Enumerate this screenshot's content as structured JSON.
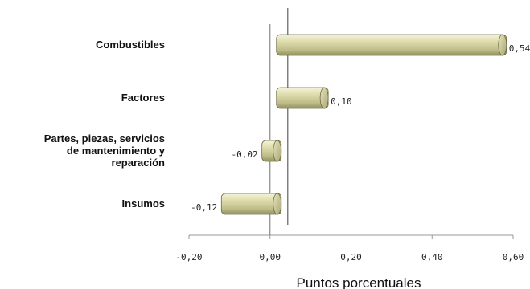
{
  "chart_data": {
    "type": "bar",
    "orientation": "horizontal",
    "categories": [
      "Combustibles",
      "Factores",
      "Partes, piezas, servicios de mantenimiento y reparación",
      "Insumos"
    ],
    "category_lines": [
      [
        "Combustibles"
      ],
      [
        "Factores"
      ],
      [
        "Partes, piezas, servicios",
        "de mantenimiento y",
        "reparación"
      ],
      [
        "Insumos"
      ]
    ],
    "values": [
      0.54,
      0.1,
      -0.02,
      -0.12
    ],
    "value_labels": [
      "0,54",
      "0,10",
      "-0,02",
      "-0,12"
    ],
    "xlabel": "Puntos porcentuales",
    "ylabel": "",
    "xlim": [
      -0.2,
      0.6
    ],
    "xticks": [
      -0.2,
      0.0,
      0.2,
      0.4,
      0.6
    ],
    "xtick_labels": [
      "-0,20",
      "0,00",
      "0,20",
      "0,40",
      "0,60"
    ],
    "grid": false,
    "legend": "none",
    "bar_style": "3d-cylinder",
    "colors": {
      "bar_light": "#ecebcb",
      "bar_mid": "#cfcd9c",
      "bar_dark": "#8f8d5c",
      "axis": "#888888"
    }
  }
}
